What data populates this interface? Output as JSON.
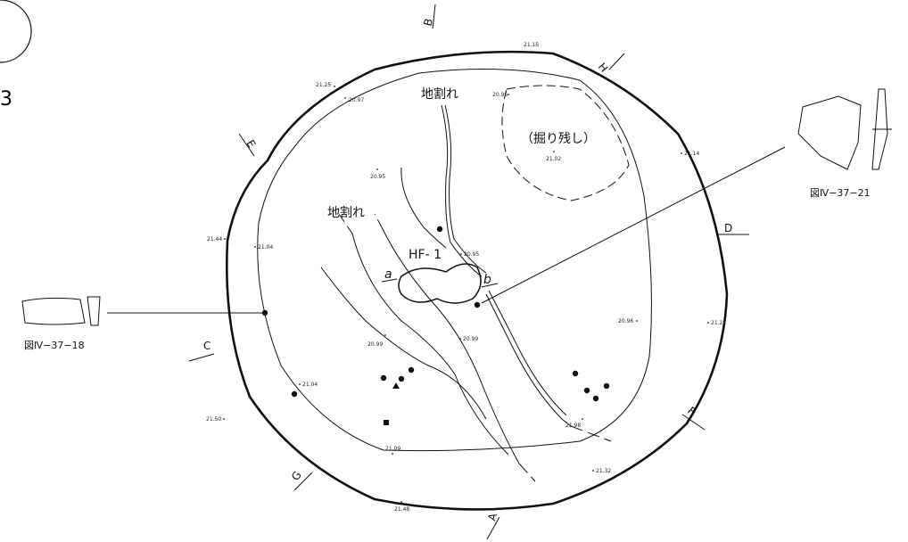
{
  "page_number": "3",
  "section_labels": [
    "A",
    "B",
    "C",
    "D",
    "E",
    "F",
    "G",
    "H"
  ],
  "crack_labels": [
    "地割れ",
    "地割れ"
  ],
  "feature_label": "HF- 1",
  "unexcavated_label": "（掘り残し）",
  "profile_points": [
    "a",
    "b"
  ],
  "elevations": [
    "21.15",
    "21.25",
    "20.97",
    "20.95",
    "21.02",
    "21.14",
    "20.95",
    "21.44",
    "21.04",
    "20.95",
    "20.99",
    "20.99",
    "20.96",
    "21.21",
    "21.04",
    "21.50",
    "21.09",
    "21.98",
    "21.32",
    "21.48"
  ],
  "figure_refs": [
    "図Ⅳ−37−21",
    "図Ⅳ−37−18"
  ]
}
